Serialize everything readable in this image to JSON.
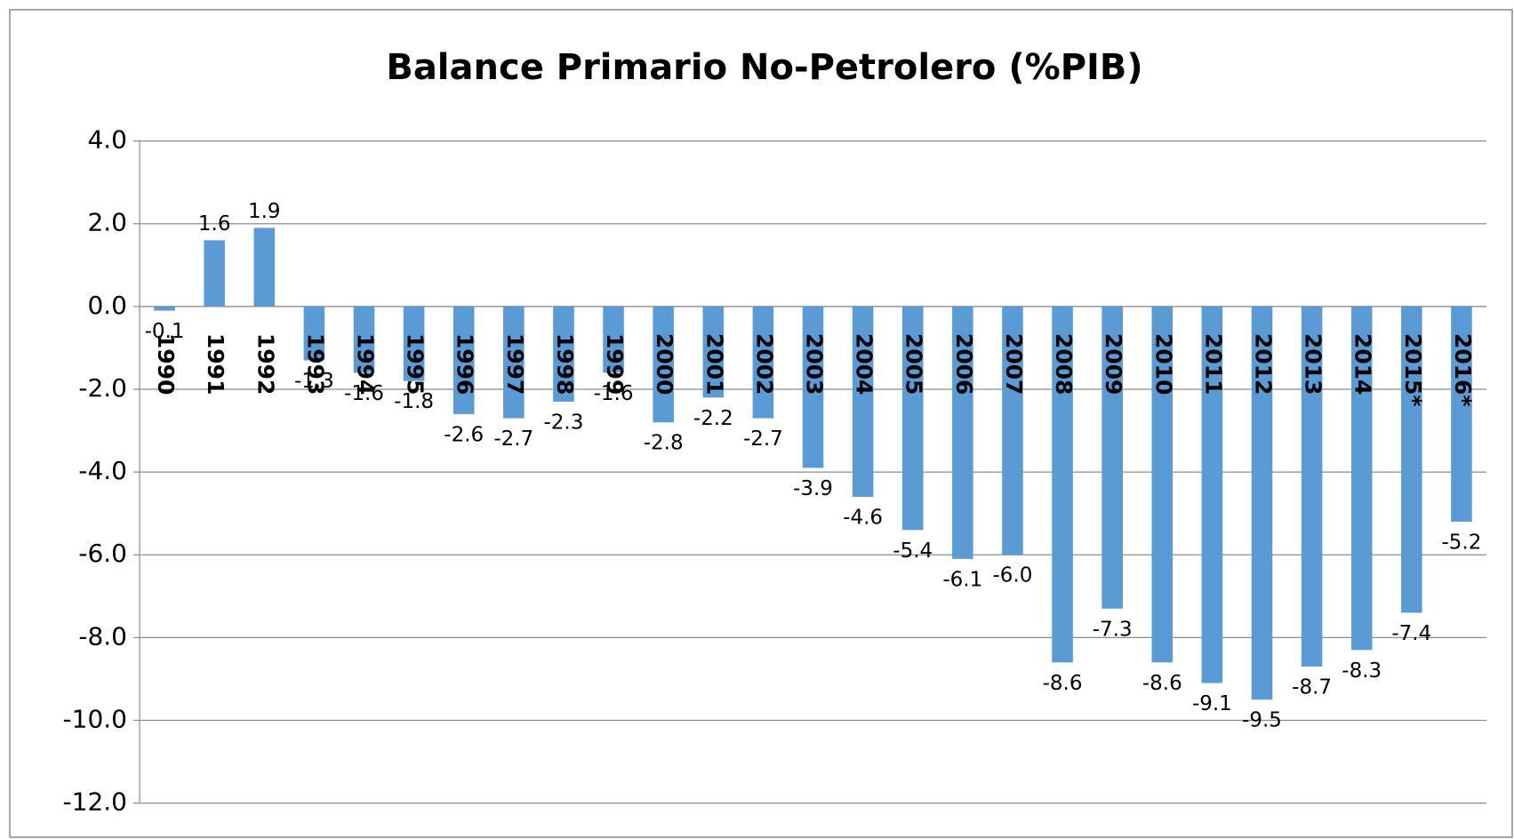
{
  "chart_data": {
    "type": "bar",
    "title": "Balance Primario No-Petrolero (%PIB)",
    "categories": [
      "1990",
      "1991",
      "1992",
      "1993",
      "1994",
      "1995",
      "1996",
      "1997",
      "1998",
      "1999",
      "2000",
      "2001",
      "2002",
      "2003",
      "2004",
      "2005",
      "2006",
      "2007",
      "2008",
      "2009",
      "2010",
      "2011",
      "2012",
      "2013",
      "2014",
      "2015*",
      "2016*"
    ],
    "values": [
      -0.1,
      1.6,
      1.9,
      -1.3,
      -1.6,
      -1.8,
      -2.6,
      -2.7,
      -2.3,
      -1.6,
      -2.8,
      -2.2,
      -2.7,
      -3.9,
      -4.6,
      -5.4,
      -6.1,
      -6.0,
      -8.6,
      -7.3,
      -8.6,
      -9.1,
      -9.5,
      -8.7,
      -8.3,
      -7.4,
      -5.2
    ],
    "value_labels": [
      "-0.1",
      "1.6",
      "1.9",
      "-1.3",
      "-1.6",
      "-1.8",
      "-2.6",
      "-2.7",
      "-2.3",
      "-1.6",
      "-2.8",
      "-2.2",
      "-2.7",
      "-3.9",
      "-4.6",
      "-5.4",
      "-6.1",
      "-6.0",
      "-8.6",
      "-7.3",
      "-8.6",
      "-9.1",
      "-9.5",
      "-8.7",
      "-8.3",
      "-7.4",
      "-5.2"
    ],
    "color": "#5b9bd5",
    "ylim": [
      -12,
      4
    ],
    "yticks": [
      {
        "value": -12,
        "label": "-12.0"
      },
      {
        "value": -10,
        "label": "-10.0"
      },
      {
        "value": -8,
        "label": "-8.0"
      },
      {
        "value": -6,
        "label": "-6.0"
      },
      {
        "value": -4,
        "label": "-4.0"
      },
      {
        "value": -2,
        "label": "-2.0"
      },
      {
        "value": 0,
        "label": "0.0"
      },
      {
        "value": 2,
        "label": "2.0"
      },
      {
        "value": 4,
        "label": "4.0"
      }
    ],
    "grid": true
  }
}
